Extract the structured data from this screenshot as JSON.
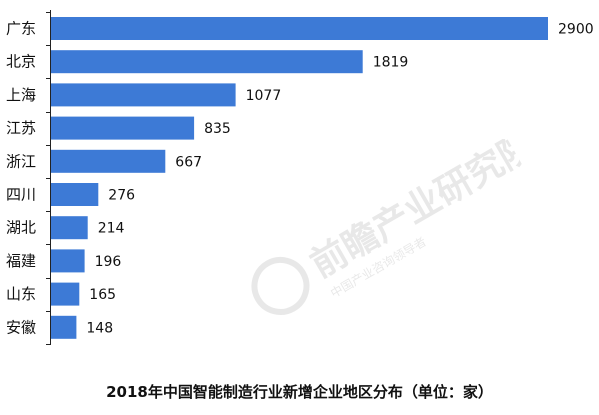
{
  "chart_data": {
    "type": "bar",
    "orientation": "horizontal",
    "title": "2018年中国智能制造行业新增企业地区分布（单位：家）",
    "categories": [
      "广东",
      "北京",
      "上海",
      "江苏",
      "浙江",
      "四川",
      "湖北",
      "福建",
      "山东",
      "安徽"
    ],
    "values": [
      2900,
      1819,
      1077,
      835,
      667,
      276,
      214,
      196,
      165,
      148
    ],
    "xlabel": "",
    "ylabel": "",
    "xlim": [
      0,
      2900
    ],
    "grid": false,
    "legend": "none",
    "bar_color": "#3d7ad6"
  },
  "watermark": {
    "text": "前瞻产业研究院",
    "subtext": "中国产业咨询领导者"
  }
}
